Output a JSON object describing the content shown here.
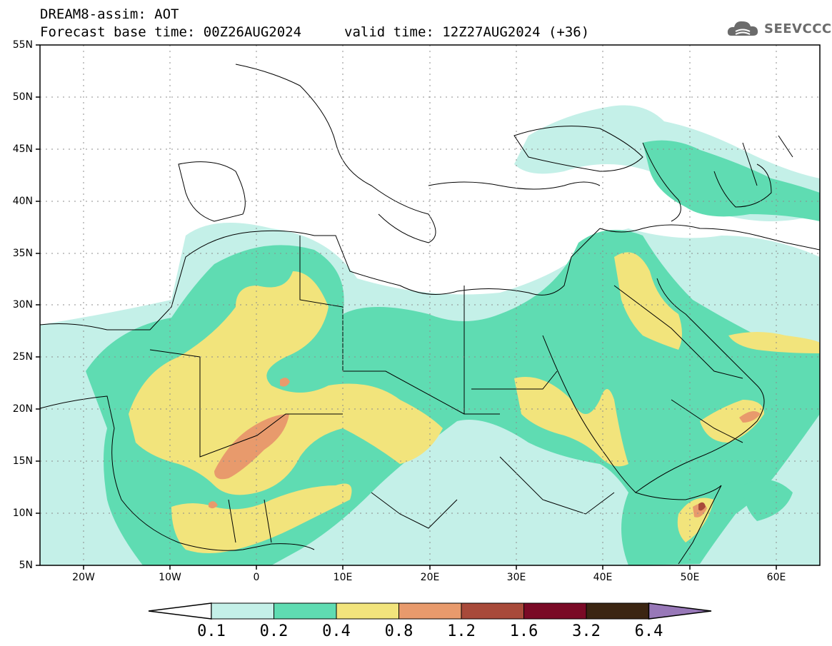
{
  "header": {
    "title": "DREAM8-assim: AOT",
    "base_time": "Forecast base time: 00Z26AUG2024",
    "valid_time": "valid time: 12Z27AUG2024 (+36)"
  },
  "logo": {
    "text": "SEEVCCC",
    "icon": "cloud-icon",
    "color": "#6b6b6b"
  },
  "map": {
    "variable": "AOT",
    "lon_range": [
      -25,
      65
    ],
    "lat_range": [
      5,
      55
    ],
    "grid": "dotted",
    "lat_labels": [
      "55N",
      "50N",
      "45N",
      "40N",
      "35N",
      "30N",
      "25N",
      "20N",
      "15N",
      "10N",
      "5N"
    ],
    "lon_labels": [
      "20W",
      "10W",
      "0",
      "10E",
      "20E",
      "30E",
      "40E",
      "50E",
      "60E"
    ]
  },
  "colorbar": {
    "levels": [
      "0.1",
      "0.2",
      "0.4",
      "0.8",
      "1.2",
      "1.6",
      "3.2",
      "6.4"
    ],
    "colors": [
      "#c4f0e8",
      "#5fdcb2",
      "#f2e47c",
      "#e89a6c",
      "#a84a3a",
      "#7a0a26",
      "#3b2512",
      "#9878b8"
    ],
    "under_color": "#ffffff",
    "over_color": "#9878b8"
  }
}
